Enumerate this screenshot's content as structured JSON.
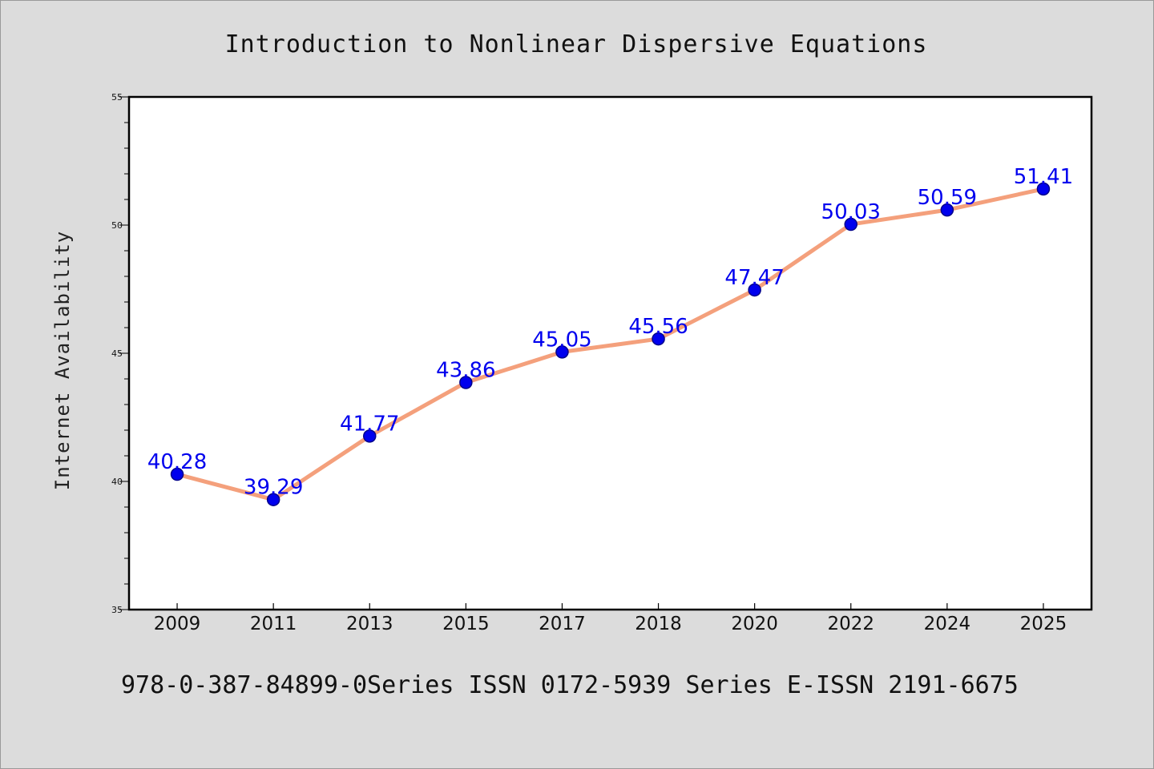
{
  "chart_data": {
    "type": "line",
    "title": "Introduction to Nonlinear Dispersive Equations",
    "ylabel": "Internet Availability",
    "xlabel": "",
    "categories": [
      "2009",
      "2011",
      "2013",
      "2015",
      "2017",
      "2018",
      "2020",
      "2022",
      "2024",
      "2025"
    ],
    "values": [
      40.28,
      39.29,
      41.77,
      43.86,
      45.05,
      45.56,
      47.47,
      50.03,
      50.59,
      51.41
    ],
    "data_labels": [
      "40.28",
      "39.29",
      "41.77",
      "43.86",
      "45.05",
      "45.56",
      "47.47",
      "50.03",
      "50.59",
      "51.41"
    ],
    "ylim": [
      35,
      55
    ],
    "yticks": [
      35,
      40,
      45,
      50,
      55
    ],
    "ytick_labels": [
      "35",
      "40",
      "45",
      "50",
      "55"
    ],
    "grid": false,
    "colors": {
      "line": "#f4a07c",
      "marker": "#0000ee",
      "marker_edge": "#00008b",
      "data_label": "#0000ee",
      "plot_background": "#ffffff",
      "figure_background": "#dcdcdc"
    }
  },
  "footer": {
    "text": "978-0-387-84899-0Series ISSN 0172-5939 Series E-ISSN 2191-6675"
  }
}
